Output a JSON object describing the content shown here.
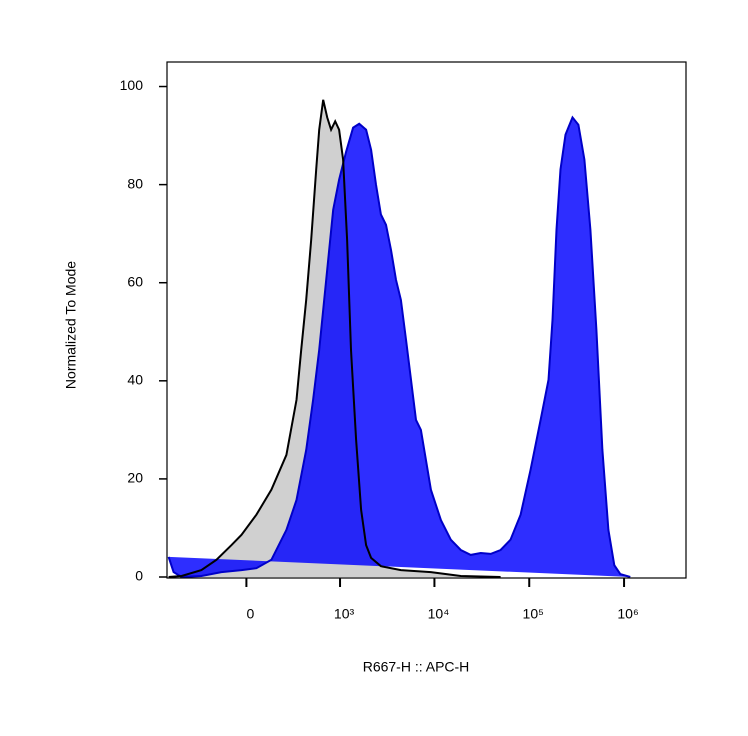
{
  "chart_data": {
    "type": "area",
    "x_label": "R667-H :: APC-H",
    "y_label": "Normalized To Mode",
    "xscale": "biexponential",
    "xlim": [
      -700,
      4500000
    ],
    "ylim": [
      0,
      105
    ],
    "xticks": [
      {
        "value": 0,
        "label": "0"
      },
      {
        "value": 1000,
        "label": "10³"
      },
      {
        "value": 10000,
        "label": "10⁴"
      },
      {
        "value": 100000,
        "label": "10⁵"
      },
      {
        "value": 1000000,
        "label": "10⁶"
      }
    ],
    "yticks": [
      0,
      20,
      40,
      60,
      80,
      100
    ],
    "series": [
      {
        "color": "#d0d0d0",
        "line_color": "#000000",
        "x": [
          -672,
          -480,
          -275,
          -165,
          -77,
          -25,
          51,
          134,
          235,
          320,
          366,
          420,
          480,
          547,
          591,
          655,
          726,
          801,
          886,
          978,
          1080,
          1192,
          1312,
          1485,
          1679,
          1897,
          2142,
          2725,
          4430,
          9170,
          18970,
          49900
        ],
        "values": [
          0,
          0.2,
          1.4,
          3.5,
          6.5,
          8.6,
          12.7,
          17.8,
          24.9,
          36.1,
          46.3,
          56.5,
          68.8,
          83.1,
          91.2,
          97.3,
          93.7,
          91.2,
          92.9,
          91.2,
          85.1,
          68.8,
          46.3,
          28,
          13.7,
          6.5,
          3.9,
          2.2,
          1.4,
          1.0,
          0.2,
          0
        ]
      },
      {
        "color": "#0000ff",
        "line_color": "#0000c8",
        "x": [
          -672,
          -591,
          -480,
          -275,
          -134,
          -25,
          51,
          134,
          235,
          320,
          420,
          505,
          591,
          708,
          843,
          978,
          1161,
          1379,
          1601,
          1897,
          2142,
          2413,
          2725,
          3080,
          3480,
          3930,
          4430,
          5010,
          5660,
          6390,
          7200,
          8130,
          9170,
          11690,
          14890,
          18970,
          24150,
          30770,
          39200,
          49900,
          63500,
          81000,
          103000,
          131700,
          159800,
          176000,
          193700,
          213500,
          241000,
          285600,
          330000,
          381900,
          441800,
          510800,
          590700,
          683000,
          789800,
          913000,
          1163000
        ],
        "values": [
          4.1,
          1.0,
          0,
          0.2,
          1.0,
          1.4,
          1.8,
          3.5,
          9.6,
          15.7,
          25.9,
          36.1,
          46.3,
          60.6,
          74.9,
          81.0,
          86.7,
          91.6,
          92.4,
          91.2,
          87.1,
          80,
          73.9,
          71.8,
          66.7,
          60.6,
          56.5,
          48.4,
          40.2,
          32.0,
          30.0,
          23.9,
          17.8,
          11.6,
          7.6,
          5.5,
          4.5,
          4.9,
          4.7,
          5.5,
          7.6,
          12.7,
          21.8,
          32,
          40.2,
          52.4,
          70.8,
          83.1,
          90.2,
          93.7,
          92.2,
          85.1,
          70.8,
          50.4,
          25.9,
          9.6,
          2.4,
          0.6,
          0
        ]
      }
    ]
  }
}
